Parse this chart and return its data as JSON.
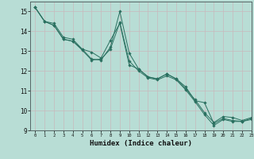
{
  "xlabel": "Humidex (Indice chaleur)",
  "xlim": [
    -0.5,
    23
  ],
  "ylim": [
    9,
    15.5
  ],
  "yticks": [
    9,
    10,
    11,
    12,
    13,
    14,
    15
  ],
  "xticks": [
    0,
    1,
    2,
    3,
    4,
    5,
    6,
    7,
    8,
    9,
    10,
    11,
    12,
    13,
    14,
    15,
    16,
    17,
    18,
    19,
    20,
    21,
    22,
    23
  ],
  "bg_color": "#b8ddd5",
  "grid_color": "#d8eeea",
  "line_color": "#2a7060",
  "lines": [
    {
      "x": [
        0,
        1,
        2,
        3,
        4,
        5,
        6,
        7,
        8,
        9,
        10,
        11,
        12,
        13,
        14,
        15,
        16,
        17,
        18,
        19,
        20,
        21,
        22,
        23
      ],
      "y": [
        15.2,
        14.5,
        14.4,
        13.7,
        13.6,
        13.1,
        12.6,
        12.55,
        13.2,
        15.0,
        12.9,
        12.1,
        11.7,
        11.6,
        11.85,
        11.6,
        11.2,
        10.5,
        10.4,
        9.35,
        9.6,
        9.5,
        9.45,
        9.6
      ]
    },
    {
      "x": [
        0,
        1,
        2,
        3,
        4,
        5,
        6,
        7,
        8,
        9,
        10,
        11,
        12,
        13,
        14,
        15,
        16,
        17,
        18,
        19,
        20,
        21,
        22,
        23
      ],
      "y": [
        15.2,
        14.5,
        14.3,
        13.6,
        13.5,
        13.05,
        12.55,
        12.6,
        13.1,
        14.45,
        12.5,
        12.0,
        11.65,
        11.55,
        11.75,
        11.55,
        11.05,
        10.45,
        9.8,
        9.25,
        9.55,
        9.45,
        9.45,
        9.55
      ]
    },
    {
      "x": [
        0,
        1,
        2,
        3,
        4,
        5,
        6,
        7,
        8,
        9,
        10,
        11,
        12,
        13,
        14,
        15,
        16,
        17,
        18,
        19,
        20,
        21,
        22,
        23
      ],
      "y": [
        15.2,
        14.5,
        14.3,
        13.6,
        13.5,
        13.1,
        12.95,
        12.65,
        13.55,
        14.4,
        12.3,
        12.1,
        11.7,
        11.6,
        11.85,
        11.6,
        11.1,
        10.55,
        9.9,
        9.4,
        9.7,
        9.65,
        9.5,
        9.65
      ]
    }
  ]
}
